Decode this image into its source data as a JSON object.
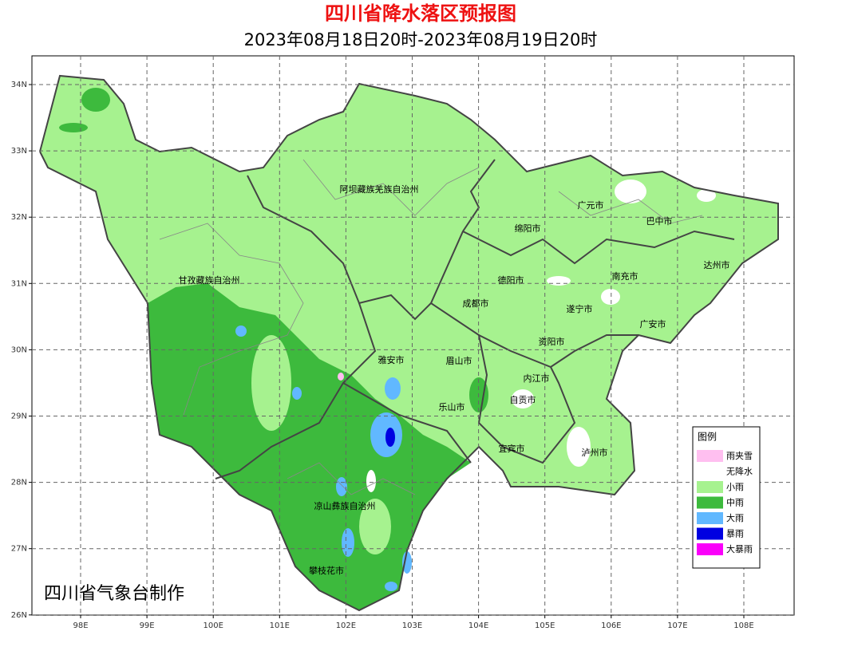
{
  "header": {
    "title": "四川省降水落区预报图",
    "subtitle": "2023年08月18日20时-2023年08月19日20时"
  },
  "map": {
    "lat_labels": [
      "34N",
      "33N",
      "32N",
      "31N",
      "30N",
      "29N",
      "28N",
      "27N",
      "26N"
    ],
    "lon_labels": [
      "98E",
      "99E",
      "100E",
      "101E",
      "102E",
      "103E",
      "104E",
      "105E",
      "106E",
      "107E",
      "108E"
    ],
    "places": [
      "阿坝藏族羌族自治州",
      "甘孜藏族自治州",
      "广元市",
      "巴中市",
      "绵阳市",
      "达州市",
      "德阳市",
      "南充市",
      "成都市",
      "遂宁市",
      "广安市",
      "资阳市",
      "雅安市",
      "眉山市",
      "内江市",
      "自贡市",
      "乐山市",
      "宜宾市",
      "泸州市",
      "凉山彝族自治州",
      "攀枝花市"
    ]
  },
  "legend": {
    "title": "图例",
    "items": [
      {
        "label": "雨夹雪",
        "color": "#ffbff0"
      },
      {
        "label": "无降水",
        "color": "#ffffff"
      },
      {
        "label": "小雨",
        "color": "#a6f28f"
      },
      {
        "label": "中雨",
        "color": "#3dba3d"
      },
      {
        "label": "大雨",
        "color": "#61b8ff"
      },
      {
        "label": "暴雨",
        "color": "#0000e1"
      },
      {
        "label": "大暴雨",
        "color": "#fa00fa"
      }
    ]
  },
  "credit": "四川省气象台制作"
}
